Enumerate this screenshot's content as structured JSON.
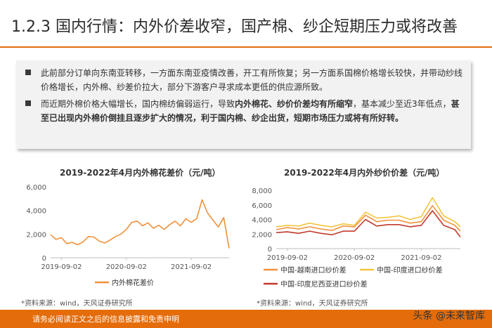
{
  "page": {
    "title": "1.2.3 国内行情：内外价差收窄，国产棉、纱企短期压力或将改善",
    "summary": {
      "bullet1": "此前部分订单向东南亚转移，一方面东南亚疫情改善，开工有所恢复；另一方面系国棉价格增长较快，并带动纱线价格增长，内外棉、纱差价拉大，部分下游客户寻求成本更低的供应源所致。",
      "bullet2_a": "而近期外棉价格大幅增长，国内棉纺偏弱运行，导致",
      "bullet2_b": "内外棉花、纱价价差均有所缩窄",
      "bullet2_c": "，基本减少至近3年低点，",
      "bullet2_d": "甚至已出现内外棉价倒挂且逐步扩大的情况，利于国内棉、纱企出货，短期市场压力或将有所好转。"
    },
    "footer": "请务必阅读正文之后的信息披露和免责申明",
    "watermark": "头条 @未来智库",
    "colors": {
      "accent": "#E46C0A",
      "series1": "#F0913A",
      "series2": "#F2C53D",
      "series3": "#C0392B"
    }
  },
  "chart_data": [
    {
      "type": "line",
      "title": "2019-2022年4月内外棉花差价（元/吨）",
      "x_ticks": [
        "2019-09-02",
        "2020-09-02",
        "2021-09-02"
      ],
      "ylim": [
        0,
        6000
      ],
      "y_ticks": [
        "0",
        "2,000",
        "4,000",
        "6,000"
      ],
      "grid": false,
      "legend_position": "bottom",
      "source": "*资料来源：wind，天风证券研究所",
      "series": [
        {
          "name": "内外棉花差价",
          "color": "#F0913A",
          "points": [
            [
              "2019-07",
              1950
            ],
            [
              "2019-08",
              1550
            ],
            [
              "2019-09",
              1700
            ],
            [
              "2019-10",
              1200
            ],
            [
              "2019-11",
              1300
            ],
            [
              "2019-12",
              1100
            ],
            [
              "2020-01",
              1350
            ],
            [
              "2020-02",
              1800
            ],
            [
              "2020-03",
              1750
            ],
            [
              "2020-04",
              1400
            ],
            [
              "2020-05",
              1250
            ],
            [
              "2020-06",
              1500
            ],
            [
              "2020-07",
              1800
            ],
            [
              "2020-08",
              2000
            ],
            [
              "2020-09",
              2400
            ],
            [
              "2020-10",
              3000
            ],
            [
              "2020-11",
              3100
            ],
            [
              "2020-12",
              2700
            ],
            [
              "2021-01",
              2950
            ],
            [
              "2021-02",
              2500
            ],
            [
              "2021-03",
              2750
            ],
            [
              "2021-04",
              2400
            ],
            [
              "2021-05",
              2800
            ],
            [
              "2021-06",
              3100
            ],
            [
              "2021-07",
              2700
            ],
            [
              "2021-08",
              3300
            ],
            [
              "2021-09",
              3000
            ],
            [
              "2021-10",
              3300
            ],
            [
              "2021-11",
              4900
            ],
            [
              "2021-12",
              3800
            ],
            [
              "2022-01",
              3200
            ],
            [
              "2022-02",
              2600
            ],
            [
              "2022-03",
              3400
            ],
            [
              "2022-04",
              800
            ]
          ]
        }
      ]
    },
    {
      "type": "line",
      "title": "2019-2022年4月内外纱价价差（元/吨）",
      "x_ticks": [
        "2019-09-02",
        "2020-09-02",
        "2021-09-02"
      ],
      "ylim": [
        0,
        8000
      ],
      "y_ticks": [
        "0",
        "2,000",
        "4,000",
        "6,000",
        "8,000"
      ],
      "grid": false,
      "legend_position": "bottom",
      "source": "*资料来源：wind，天风证券研究所",
      "series": [
        {
          "name": "中国-越南进口纱价差",
          "color": "#F0913A",
          "points": [
            [
              "2019-07",
              2600
            ],
            [
              "2019-09",
              2900
            ],
            [
              "2019-11",
              2700
            ],
            [
              "2020-01",
              3000
            ],
            [
              "2020-03",
              2700
            ],
            [
              "2020-05",
              2500
            ],
            [
              "2020-07",
              3100
            ],
            [
              "2020-09",
              3000
            ],
            [
              "2020-11",
              4600
            ],
            [
              "2021-01",
              3700
            ],
            [
              "2021-03",
              3900
            ],
            [
              "2021-05",
              3900
            ],
            [
              "2021-07",
              3500
            ],
            [
              "2021-09",
              3700
            ],
            [
              "2021-11",
              5900
            ],
            [
              "2022-01",
              3900
            ],
            [
              "2022-03",
              3200
            ],
            [
              "2022-04",
              2400
            ]
          ]
        },
        {
          "name": "中国-印度进口纱价差",
          "color": "#F2C53D",
          "points": [
            [
              "2019-07",
              3000
            ],
            [
              "2019-09",
              3200
            ],
            [
              "2019-11",
              3100
            ],
            [
              "2020-01",
              3500
            ],
            [
              "2020-03",
              3200
            ],
            [
              "2020-05",
              3000
            ],
            [
              "2020-07",
              3400
            ],
            [
              "2020-09",
              3200
            ],
            [
              "2020-11",
              5000
            ],
            [
              "2021-01",
              4200
            ],
            [
              "2021-03",
              4300
            ],
            [
              "2021-05",
              4500
            ],
            [
              "2021-07",
              4000
            ],
            [
              "2021-09",
              4400
            ],
            [
              "2021-11",
              7000
            ],
            [
              "2022-01",
              4500
            ],
            [
              "2022-03",
              3700
            ],
            [
              "2022-04",
              3000
            ]
          ]
        },
        {
          "name": "中国-印度尼西亚进口纱价差",
          "color": "#C0392B",
          "points": [
            [
              "2019-07",
              2200
            ],
            [
              "2019-09",
              2300
            ],
            [
              "2019-11",
              2100
            ],
            [
              "2020-01",
              2400
            ],
            [
              "2020-03",
              2100
            ],
            [
              "2020-05",
              1900
            ],
            [
              "2020-07",
              2400
            ],
            [
              "2020-09",
              2400
            ],
            [
              "2020-11",
              4000
            ],
            [
              "2021-01",
              3100
            ],
            [
              "2021-03",
              3300
            ],
            [
              "2021-05",
              3300
            ],
            [
              "2021-07",
              3000
            ],
            [
              "2021-09",
              3200
            ],
            [
              "2021-11",
              5200
            ],
            [
              "2022-01",
              3200
            ],
            [
              "2022-03",
              2600
            ],
            [
              "2022-04",
              1600
            ]
          ]
        }
      ]
    }
  ]
}
